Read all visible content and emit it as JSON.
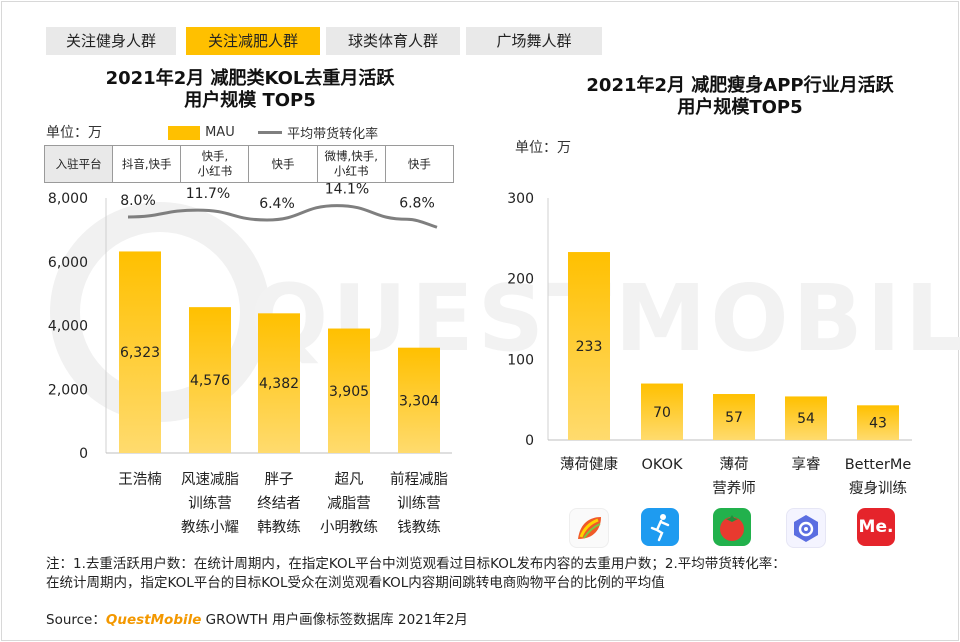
{
  "tabs": [
    {
      "label": "关注健身人群",
      "active": false
    },
    {
      "label": "关注减肥人群",
      "active": true
    },
    {
      "label": "球类体育人群",
      "active": false
    },
    {
      "label": "广场舞人群",
      "active": false
    }
  ],
  "watermark": "QUESTMOBILE",
  "left_chart": {
    "title_line1": "2021年2月 减肥类KOL去重月活跃",
    "title_line2": "用户规模 TOP5",
    "unit": "单位：万",
    "legend_bar": "MAU",
    "legend_line": "平均带货转化率",
    "platform_header": "入驻平台",
    "platforms": [
      [
        "抖音,快手"
      ],
      [
        "快手,",
        "小红书"
      ],
      [
        "快手"
      ],
      [
        "微博,快手,",
        "小红书"
      ],
      [
        "快手"
      ]
    ],
    "category_lines": [
      [
        "王浩楠"
      ],
      [
        "风速减脂",
        "训练营",
        "教练小耀"
      ],
      [
        "胖子",
        "终结者",
        "韩教练"
      ],
      [
        "超凡",
        "减脂营",
        "小明教练"
      ],
      [
        "前程减脂",
        "训练营",
        "钱教练"
      ]
    ],
    "y_ticks": [
      "0",
      "2,000",
      "4,000",
      "6,000",
      "8,000"
    ]
  },
  "right_chart": {
    "title_line1": "2021年2月 减肥瘦身APP行业月活跃",
    "title_line2": "用户规模TOP5",
    "unit": "单位：万",
    "category_lines": [
      [
        "薄荷健康"
      ],
      [
        "OKOK"
      ],
      [
        "薄荷",
        "营养师"
      ],
      [
        "享睿"
      ],
      [
        "BetterMe",
        "瘦身训练"
      ]
    ],
    "y_ticks": [
      "0",
      "100",
      "200",
      "300"
    ],
    "icons": [
      "boohee-leaf-icon",
      "okok-runner-icon",
      "tomato-icon",
      "xiangrui-scale-icon",
      "betterme-me-icon"
    ],
    "betterme_icon_text": "Me."
  },
  "notes_line1": "注：1.去重活跃用户数：在统计周期内，在指定KOL平台中浏览观看过目标KOL发布内容的去重用户数；2.平均带货转化率：",
  "notes_line2": "在统计周期内，指定KOL平台的目标KOL受众在浏览观看KOL内容期间跳转电商购物平台的比例的平均值",
  "source_label": "Source：",
  "source_brand": "QuestMobile",
  "source_rest": " GROWTH 用户画像标签数据库 2021年2月",
  "colors": {
    "accent": "#ffc000",
    "bar_top": "#ffc000",
    "bar_bottom": "#ffd966",
    "line": "#7f7f7f",
    "tab_inactive": "#e9e9e9"
  },
  "chart_data": [
    {
      "type": "bar",
      "title": "2021年2月 减肥类KOL去重月活跃用户规模 TOP5",
      "categories": [
        "王浩楠",
        "风速减脂训练营教练小耀",
        "胖子终结者韩教练",
        "超凡减脂营小明教练",
        "前程减脂训练营钱教练"
      ],
      "series": [
        {
          "name": "MAU",
          "type": "bar",
          "values": [
            6323,
            4576,
            4382,
            3905,
            3304
          ],
          "labels": [
            "6,323",
            "4,576",
            "4,382",
            "3,905",
            "3,304"
          ]
        },
        {
          "name": "平均带货转化率",
          "type": "line",
          "values": [
            8.0,
            11.7,
            6.4,
            14.1,
            6.8
          ],
          "labels": [
            "8.0%",
            "11.7%",
            "6.4%",
            "14.1%",
            "6.8%"
          ]
        }
      ],
      "ylim": [
        0,
        8000
      ],
      "y2lim": [
        0,
        16
      ],
      "grid": false,
      "legend": "top"
    },
    {
      "type": "bar",
      "title": "2021年2月 减肥瘦身APP行业月活跃用户规模TOP5",
      "categories": [
        "薄荷健康",
        "OKOK",
        "薄荷营养师",
        "享睿",
        "BetterMe瘦身训练"
      ],
      "values": [
        233,
        70,
        57,
        54,
        43
      ],
      "labels": [
        "233",
        "70",
        "57",
        "54",
        "43"
      ],
      "ylim": [
        0,
        300
      ],
      "grid": false
    }
  ]
}
